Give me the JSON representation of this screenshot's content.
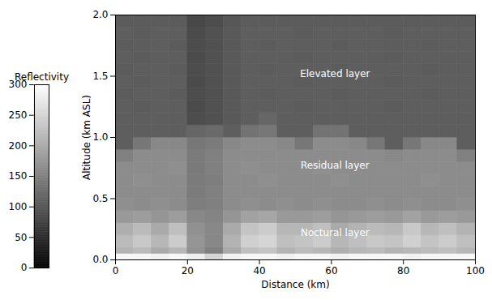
{
  "chart_data": {
    "type": "heatmap",
    "xlabel": "Distance (km)",
    "ylabel": "Altitude (km ASL)",
    "xlim": [
      0,
      100
    ],
    "xticks": [
      0,
      20,
      40,
      60,
      80,
      100
    ],
    "ylim": [
      0,
      2
    ],
    "yticks": [
      {
        "value": 0,
        "label": "0.0"
      },
      0.5,
      {
        "value": 1,
        "label": "1.0"
      },
      1.5,
      {
        "value": 2,
        "label": "2.0"
      }
    ],
    "x_edges": [
      0,
      5,
      10,
      15,
      20,
      25,
      30,
      35,
      40,
      45,
      50,
      55,
      60,
      65,
      70,
      75,
      80,
      85,
      90,
      95,
      100
    ],
    "y_edges": [
      0,
      0.05,
      0.1,
      0.2,
      0.3,
      0.4,
      0.5,
      0.6,
      0.7,
      0.8,
      0.9,
      1.0,
      1.1,
      1.2,
      1.3,
      1.4,
      1.5,
      1.6,
      1.7,
      1.8,
      1.9,
      2.0
    ],
    "cells": [
      [
        290,
        290,
        285,
        290,
        280,
        250,
        285,
        290,
        290,
        285,
        290,
        290,
        285,
        290,
        290,
        290,
        285,
        290,
        290,
        290
      ],
      [
        210,
        220,
        200,
        215,
        170,
        150,
        200,
        225,
        230,
        210,
        220,
        215,
        205,
        215,
        220,
        210,
        215,
        220,
        225,
        215
      ],
      [
        220,
        235,
        215,
        240,
        175,
        160,
        210,
        245,
        250,
        225,
        230,
        240,
        215,
        225,
        235,
        230,
        245,
        230,
        240,
        225
      ],
      [
        205,
        220,
        200,
        225,
        170,
        160,
        200,
        230,
        240,
        215,
        215,
        225,
        200,
        210,
        220,
        215,
        235,
        215,
        225,
        210
      ],
      [
        180,
        185,
        175,
        185,
        160,
        155,
        175,
        190,
        195,
        180,
        180,
        185,
        175,
        180,
        185,
        180,
        190,
        180,
        185,
        180
      ],
      [
        168,
        165,
        168,
        165,
        148,
        150,
        165,
        168,
        165,
        168,
        165,
        168,
        165,
        165,
        168,
        165,
        168,
        165,
        165,
        168
      ],
      [
        165,
        165,
        165,
        165,
        145,
        150,
        165,
        165,
        165,
        165,
        165,
        165,
        165,
        165,
        165,
        165,
        165,
        165,
        165,
        165
      ],
      [
        165,
        168,
        165,
        165,
        145,
        148,
        165,
        165,
        168,
        165,
        165,
        165,
        168,
        165,
        165,
        165,
        165,
        168,
        165,
        165
      ],
      [
        165,
        165,
        165,
        168,
        143,
        150,
        165,
        168,
        165,
        165,
        165,
        168,
        165,
        165,
        165,
        165,
        165,
        165,
        165,
        165
      ],
      [
        150,
        165,
        165,
        165,
        145,
        150,
        165,
        165,
        165,
        165,
        165,
        165,
        165,
        165,
        165,
        160,
        165,
        165,
        165,
        150
      ],
      [
        110,
        140,
        160,
        160,
        140,
        145,
        160,
        165,
        165,
        160,
        140,
        165,
        165,
        160,
        140,
        110,
        140,
        160,
        160,
        110
      ],
      [
        110,
        110,
        110,
        110,
        120,
        125,
        110,
        135,
        140,
        110,
        110,
        135,
        135,
        110,
        110,
        110,
        110,
        110,
        110,
        110
      ],
      [
        110,
        110,
        110,
        110,
        90,
        95,
        105,
        110,
        120,
        110,
        110,
        110,
        110,
        110,
        110,
        110,
        110,
        110,
        110,
        110
      ],
      [
        110,
        108,
        110,
        110,
        88,
        95,
        105,
        110,
        110,
        110,
        108,
        110,
        110,
        110,
        110,
        108,
        110,
        110,
        110,
        110
      ],
      [
        108,
        110,
        110,
        108,
        90,
        95,
        105,
        110,
        108,
        110,
        110,
        110,
        108,
        110,
        110,
        110,
        110,
        108,
        110,
        110
      ],
      [
        110,
        108,
        110,
        110,
        88,
        95,
        105,
        110,
        110,
        110,
        108,
        110,
        110,
        110,
        110,
        108,
        110,
        110,
        110,
        110
      ],
      [
        108,
        110,
        110,
        108,
        90,
        95,
        105,
        110,
        108,
        110,
        110,
        110,
        108,
        110,
        110,
        110,
        110,
        108,
        110,
        110
      ],
      [
        110,
        108,
        110,
        110,
        88,
        95,
        105,
        110,
        110,
        110,
        108,
        110,
        110,
        110,
        110,
        108,
        110,
        110,
        110,
        110
      ],
      [
        108,
        110,
        110,
        108,
        90,
        95,
        105,
        110,
        108,
        110,
        110,
        110,
        108,
        110,
        110,
        110,
        110,
        108,
        110,
        110
      ],
      [
        110,
        108,
        110,
        110,
        88,
        95,
        105,
        110,
        110,
        110,
        108,
        110,
        110,
        110,
        110,
        108,
        110,
        110,
        110,
        110
      ],
      [
        108,
        108,
        108,
        108,
        85,
        90,
        102,
        108,
        108,
        108,
        108,
        108,
        108,
        108,
        108,
        108,
        108,
        108,
        108,
        108
      ]
    ],
    "color_bar": {
      "label": "Reflectivity",
      "range": [
        0,
        300
      ],
      "ticks": [
        0,
        50,
        100,
        150,
        200,
        250,
        300
      ]
    },
    "annotations": [
      {
        "text": "Elevated layer",
        "x": 61,
        "y": 1.52
      },
      {
        "text": "Residual layer",
        "x": 61,
        "y": 0.77
      },
      {
        "text": "Noctural layer",
        "x": 61,
        "y": 0.22
      }
    ]
  }
}
